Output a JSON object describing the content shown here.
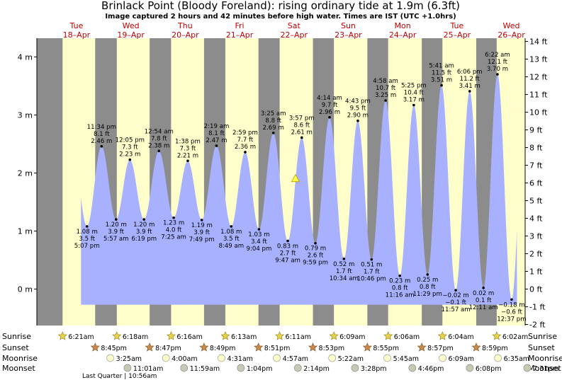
{
  "chart_data": {
    "type": "area",
    "title": "Brinlack Point (Bloody Foreland): rising  ordinary tide at 1.9m (6.3ft)",
    "subtitle": "Image captured 2 hours and 42 minutes before high water. Times are IST (UTC +1.0hrs)",
    "ylim_m": [
      -0.55,
      4.3
    ],
    "ylim_ft": [
      -2,
      14
    ],
    "yticks_m": [
      0,
      1,
      2,
      3,
      4
    ],
    "yticks_m_labels": [
      "0 m",
      "1 m",
      "2 m",
      "3 m",
      "4 m"
    ],
    "yticks_ft": [
      -2,
      -1,
      0,
      1,
      2,
      3,
      4,
      5,
      6,
      7,
      8,
      9,
      10,
      11,
      12,
      13,
      14
    ],
    "yticks_ft_labels": [
      "-2 ft",
      "-1 ft",
      "0 ft",
      "1 ft",
      "2 ft",
      "3 ft",
      "4 ft",
      "5 ft",
      "6 ft",
      "7 ft",
      "8 ft",
      "9 ft",
      "10 ft",
      "11 ft",
      "12 ft",
      "13 ft",
      "14 ft"
    ],
    "days": [
      {
        "name": "Tue",
        "date": "18–Apr"
      },
      {
        "name": "Wed",
        "date": "19–Apr"
      },
      {
        "name": "Thu",
        "date": "20–Apr"
      },
      {
        "name": "Fri",
        "date": "21–Apr"
      },
      {
        "name": "Sat",
        "date": "22–Apr"
      },
      {
        "name": "Sun",
        "date": "23–Apr"
      },
      {
        "name": "Mon",
        "date": "24–Apr"
      },
      {
        "name": "Tue",
        "date": "25–Apr"
      },
      {
        "name": "Wed",
        "date": "26–Apr"
      }
    ],
    "tides": [
      {
        "t": 17.12,
        "h": 1.08,
        "time": "5:07 pm",
        "ft": "3.5 ft",
        "m": "1.08 m",
        "type": "low"
      },
      {
        "t": 23.57,
        "h": 2.46,
        "time": "11:34 pm",
        "ft": "8.1 ft",
        "m": "2.46 m",
        "type": "high"
      },
      {
        "t": 29.95,
        "h": 1.2,
        "time": "5:57 am",
        "ft": "3.9 ft",
        "m": "1.20 m",
        "type": "low"
      },
      {
        "t": 36.08,
        "h": 2.23,
        "time": "12:05 pm",
        "ft": "7.3 ft",
        "m": "2.23 m",
        "type": "high"
      },
      {
        "t": 42.32,
        "h": 1.2,
        "time": "6:19 pm",
        "ft": "3.9 ft",
        "m": "1.20 m",
        "type": "low"
      },
      {
        "t": 48.9,
        "h": 2.38,
        "time": "12:54 am",
        "ft": "7.8 ft",
        "m": "2.38 m",
        "type": "high"
      },
      {
        "t": 55.42,
        "h": 1.23,
        "time": "7:25 am",
        "ft": "4.0 ft",
        "m": "1.23 m",
        "type": "low"
      },
      {
        "t": 61.63,
        "h": 2.21,
        "time": "1:38 pm",
        "ft": "7.3 ft",
        "m": "2.21 m",
        "type": "high"
      },
      {
        "t": 67.82,
        "h": 1.19,
        "time": "7:49 pm",
        "ft": "3.9 ft",
        "m": "1.19 m",
        "type": "low"
      },
      {
        "t": 74.32,
        "h": 2.47,
        "time": "2:19 am",
        "ft": "8.1 ft",
        "m": "2.47 m",
        "type": "high"
      },
      {
        "t": 80.82,
        "h": 1.08,
        "time": "8:49 am",
        "ft": "3.5 ft",
        "m": "1.08 m",
        "type": "low"
      },
      {
        "t": 86.98,
        "h": 2.36,
        "time": "2:59 pm",
        "ft": "7.7 ft",
        "m": "2.36 m",
        "type": "high"
      },
      {
        "t": 93.07,
        "h": 1.03,
        "time": "9:04 pm",
        "ft": "3.4 ft",
        "m": "1.03 m",
        "type": "low"
      },
      {
        "t": 99.42,
        "h": 2.69,
        "time": "3:25 am",
        "ft": "8.8 ft",
        "m": "2.69 m",
        "type": "high"
      },
      {
        "t": 105.78,
        "h": 0.83,
        "time": "9:47 am",
        "ft": "2.7 ft",
        "m": "0.83 m",
        "type": "low"
      },
      {
        "t": 111.95,
        "h": 2.61,
        "time": "3:57 pm",
        "ft": "8.6 ft",
        "m": "2.61 m",
        "type": "high"
      },
      {
        "t": 117.98,
        "h": 0.79,
        "time": "9:59 pm",
        "ft": "2.6 ft",
        "m": "0.79 m",
        "type": "low"
      },
      {
        "t": 124.23,
        "h": 2.96,
        "time": "4:14 am",
        "ft": "9.7 ft",
        "m": "2.96 m",
        "type": "high"
      },
      {
        "t": 130.57,
        "h": 0.52,
        "time": "10:34 am",
        "ft": "1.7 ft",
        "m": "0.52 m",
        "type": "low"
      },
      {
        "t": 136.72,
        "h": 2.9,
        "time": "4:43 pm",
        "ft": "9.5 ft",
        "m": "2.90 m",
        "type": "high"
      },
      {
        "t": 142.77,
        "h": 0.51,
        "time": "10:46 pm",
        "ft": "1.7 ft",
        "m": "0.51 m",
        "type": "low"
      },
      {
        "t": 148.97,
        "h": 3.25,
        "time": "4:58 am",
        "ft": "10.7 ft",
        "m": "3.25 m",
        "type": "high"
      },
      {
        "t": 155.27,
        "h": 0.23,
        "time": "11:16 am",
        "ft": "0.8 ft",
        "m": "0.23 m",
        "type": "low"
      },
      {
        "t": 161.42,
        "h": 3.17,
        "time": "5:25 pm",
        "ft": "10.4 ft",
        "m": "3.17 m",
        "type": "high"
      },
      {
        "t": 167.48,
        "h": 0.25,
        "time": "11:29 pm",
        "ft": "0.8 ft",
        "m": "0.25 m",
        "type": "low"
      },
      {
        "t": 173.68,
        "h": 3.51,
        "time": "5:41 am",
        "ft": "11.5 ft",
        "m": "3.51 m",
        "type": "high"
      },
      {
        "t": 179.95,
        "h": -0.02,
        "time": "11:57 am",
        "ft": "−0.1 ft",
        "m": "−0.02 m",
        "type": "low"
      },
      {
        "t": 186.1,
        "h": 3.41,
        "time": "6:06 pm",
        "ft": "11.2 ft",
        "m": "3.41 m",
        "type": "high"
      },
      {
        "t": 192.18,
        "h": 0.02,
        "time": "12:11 am",
        "ft": "0.1 ft",
        "m": "0.02 m",
        "type": "low"
      },
      {
        "t": 198.37,
        "h": 3.7,
        "time": "6:22 am",
        "ft": "12.1 ft",
        "m": "3.70 m",
        "type": "high"
      },
      {
        "t": 204.62,
        "h": -0.18,
        "time": "12:37 pm",
        "ft": "−0.6 ft",
        "m": "−0.18 m",
        "type": "low"
      }
    ],
    "current_marker": {
      "t": 109.2,
      "h": 1.9
    },
    "sunrise": [
      "6:21am",
      "6:18am",
      "6:16am",
      "6:13am",
      "6:11am",
      "6:09am",
      "6:06am",
      "6:04am",
      "6:02am"
    ],
    "sunset": [
      "8:45pm",
      "8:47pm",
      "8:49pm",
      "8:51pm",
      "8:53pm",
      "8:55pm",
      "8:57pm",
      "8:59pm"
    ],
    "moonrise": [
      "3:25am",
      "4:00am",
      "4:31am",
      "4:57am",
      "5:22am",
      "5:45am",
      "6:09am",
      "6:35am"
    ],
    "moonset": [
      "11:01am",
      "11:59am",
      "1:04pm",
      "2:14pm",
      "3:28pm",
      "4:46pm",
      "6:08pm",
      "7:31pm"
    ],
    "row_labels": {
      "sunrise": "Sunrise",
      "sunset": "Sunset",
      "moonrise": "Moonrise",
      "moonset": "Moonset"
    },
    "moon_phase": "Last Quarter | 10:56am",
    "colors": {
      "night": "#8c8c8c",
      "day": "#ffffcc",
      "water": "#a7b1ff",
      "day_label": "#c00000"
    }
  }
}
